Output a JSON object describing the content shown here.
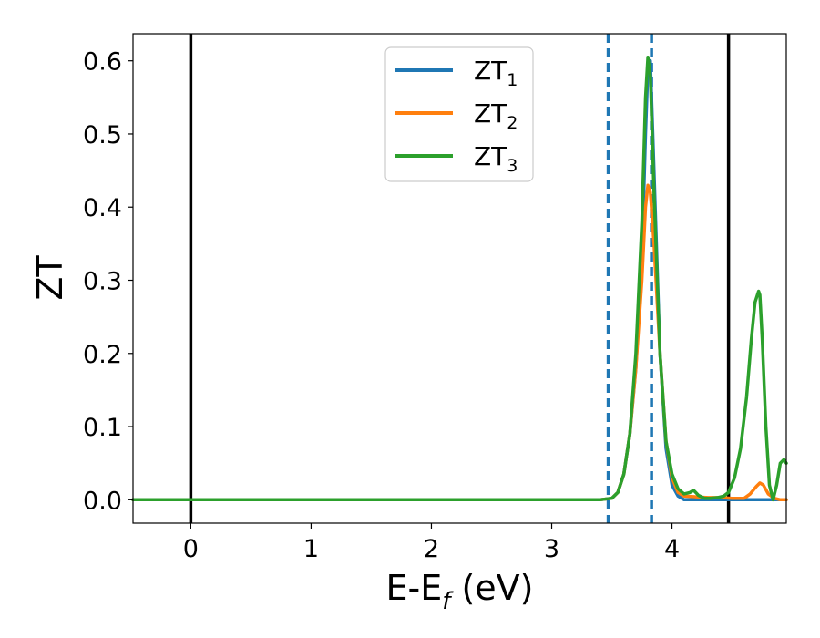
{
  "chart_data": {
    "type": "line",
    "xlabel": {
      "main": "E-E",
      "sub": "f",
      "rest": " (eV)"
    },
    "ylabel": "ZT",
    "xlim": [
      -0.48,
      4.95
    ],
    "ylim": [
      -0.032,
      0.637
    ],
    "xticks": [
      0,
      1,
      2,
      3,
      4
    ],
    "xtick_labels": [
      "0",
      "1",
      "2",
      "3",
      "4"
    ],
    "yticks": [
      0.0,
      0.1,
      0.2,
      0.3,
      0.4,
      0.5,
      0.6
    ],
    "ytick_labels": [
      "0.0",
      "0.1",
      "0.2",
      "0.3",
      "0.4",
      "0.5",
      "0.6"
    ],
    "grid": false,
    "legend_position": "top-center",
    "vlines": [
      {
        "x": 0.0,
        "style": "solid",
        "color": "#000000"
      },
      {
        "x": 4.47,
        "style": "solid",
        "color": "#000000"
      },
      {
        "x": 3.47,
        "style": "dashed",
        "color": "#1f77b4"
      },
      {
        "x": 3.83,
        "style": "dashed",
        "color": "#1f77b4"
      }
    ],
    "series": [
      {
        "name": "ZT",
        "sub": "1",
        "color": "#1f77b4",
        "x": [
          -0.48,
          3.4,
          3.5,
          3.55,
          3.6,
          3.65,
          3.7,
          3.75,
          3.78,
          3.8,
          3.82,
          3.85,
          3.9,
          3.95,
          4.0,
          4.05,
          4.1,
          4.2,
          4.95
        ],
        "y": [
          0.0,
          0.0,
          0.002,
          0.01,
          0.035,
          0.09,
          0.18,
          0.33,
          0.5,
          0.59,
          0.6,
          0.45,
          0.2,
          0.07,
          0.02,
          0.005,
          0.0,
          0.0,
          0.0
        ]
      },
      {
        "name": "ZT",
        "sub": "2",
        "color": "#ff7f0e",
        "x": [
          -0.48,
          3.4,
          3.5,
          3.55,
          3.6,
          3.65,
          3.7,
          3.75,
          3.78,
          3.8,
          3.82,
          3.85,
          3.9,
          3.95,
          4.0,
          4.05,
          4.1,
          4.2,
          4.3,
          4.4,
          4.5,
          4.6,
          4.65,
          4.7,
          4.73,
          4.76,
          4.8,
          4.85,
          4.9,
          4.95
        ],
        "y": [
          0.0,
          0.0,
          0.002,
          0.01,
          0.035,
          0.09,
          0.18,
          0.3,
          0.4,
          0.43,
          0.42,
          0.35,
          0.2,
          0.08,
          0.03,
          0.01,
          0.005,
          0.004,
          0.003,
          0.003,
          0.002,
          0.002,
          0.008,
          0.018,
          0.023,
          0.02,
          0.008,
          0.002,
          0.0,
          0.0
        ]
      },
      {
        "name": "ZT",
        "sub": "3",
        "color": "#2ca02c",
        "x": [
          -0.48,
          3.4,
          3.5,
          3.55,
          3.6,
          3.65,
          3.7,
          3.75,
          3.78,
          3.8,
          3.82,
          3.85,
          3.9,
          3.95,
          4.0,
          4.05,
          4.1,
          4.15,
          4.18,
          4.22,
          4.27,
          4.32,
          4.38,
          4.43,
          4.47,
          4.52,
          4.57,
          4.62,
          4.66,
          4.69,
          4.72,
          4.73,
          4.75,
          4.78,
          4.81,
          4.84,
          4.87,
          4.9,
          4.93,
          4.95
        ],
        "y": [
          0.0,
          0.0,
          0.002,
          0.01,
          0.035,
          0.09,
          0.2,
          0.38,
          0.55,
          0.605,
          0.58,
          0.42,
          0.2,
          0.08,
          0.035,
          0.015,
          0.008,
          0.01,
          0.013,
          0.006,
          0.002,
          0.002,
          0.003,
          0.005,
          0.01,
          0.03,
          0.07,
          0.14,
          0.22,
          0.27,
          0.285,
          0.28,
          0.22,
          0.1,
          0.02,
          0.0,
          0.02,
          0.05,
          0.055,
          0.05
        ]
      }
    ]
  }
}
